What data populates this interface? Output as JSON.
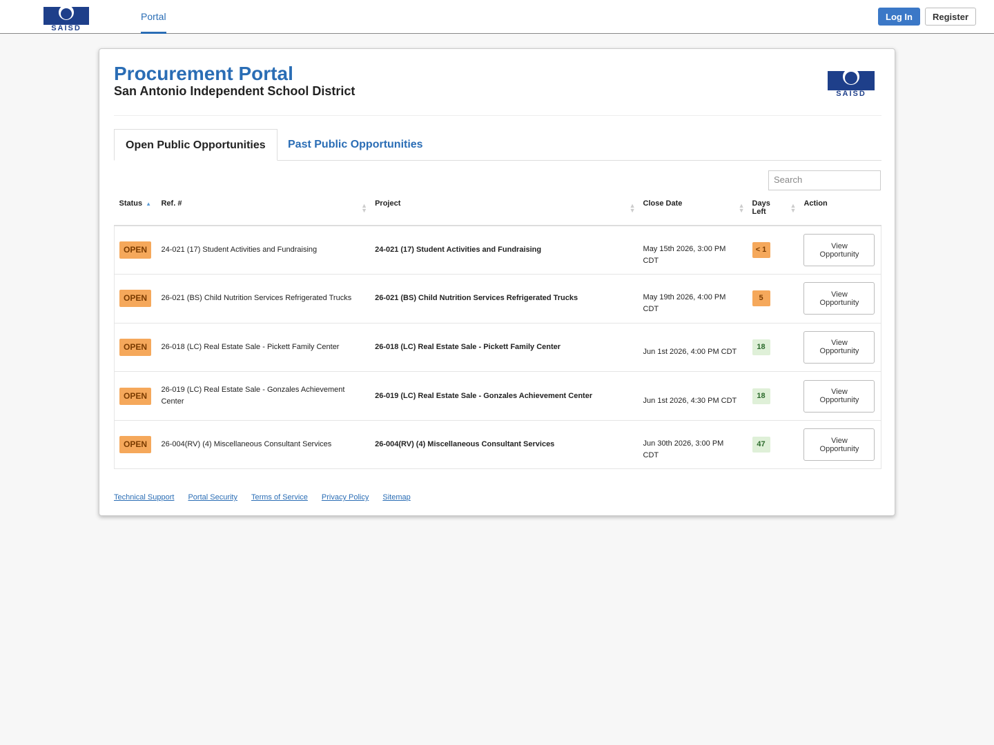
{
  "nav": {
    "logo": "SAISD",
    "link": "Portal",
    "login": "Log In",
    "register": "Register"
  },
  "header": {
    "title": "Procurement Portal",
    "subtitle": "San Antonio Independent School District",
    "logo": "SAISD"
  },
  "tabs": [
    "Open Public Opportunities",
    "Past Public Opportunities"
  ],
  "search": "Search",
  "table": {
    "columns": [
      "Status",
      "Ref. #",
      "Project",
      "Close Date",
      "Days Left",
      "Action"
    ],
    "rows": [
      {
        "status": "OPEN",
        "ref": "24-021 (17) Student Activities and Fundraising",
        "project": "24-021 (17) Student Activities and Fundraising",
        "close_date": "May 15th 2026, 3:00 PM CDT",
        "days_left": "< 1",
        "days_color": "#f5a85b",
        "action": "View Opportunity"
      },
      {
        "status": "OPEN",
        "ref": "26-021 (BS) Child Nutrition Services Refrigerated Trucks",
        "project": "26-021 (BS) Child Nutrition Services Refrigerated Trucks",
        "close_date": "May 19th 2026, 4:00 PM CDT",
        "days_left": 5,
        "days_color": "#f5a85b",
        "action": "View Opportunity"
      },
      {
        "status": "OPEN",
        "ref": "26-018 (LC) Real Estate Sale - Pickett Family Center",
        "project": "26-018 (LC) Real Estate Sale - Pickett Family Center",
        "close_date": "Jun 1st 2026, 4:00 PM CDT",
        "days_left": 18,
        "days_color": "#dff0d8",
        "action": "View Opportunity"
      },
      {
        "status": "OPEN",
        "ref": "26-019 (LC) Real Estate Sale - Gonzales Achievement Center",
        "project": "26-019 (LC) Real Estate Sale - Gonzales Achievement Center",
        "close_date": "Jun 1st 2026, 4:30 PM CDT",
        "days_left": 18,
        "days_color": "#dff0d8",
        "action": "View Opportunity"
      },
      {
        "status": "OPEN",
        "ref": "26-004(RV) (4) Miscellaneous Consultant Services",
        "project": "26-004(RV) (4) Miscellaneous Consultant Services",
        "close_date": "Jun 30th 2026, 3:00 PM CDT",
        "days_left": 47,
        "days_color": "#dff0d8",
        "action": "View Opportunity"
      }
    ]
  },
  "footer": [
    "Technical Support",
    "Portal Security",
    "Terms of Service",
    "Privacy Policy",
    "Sitemap"
  ]
}
